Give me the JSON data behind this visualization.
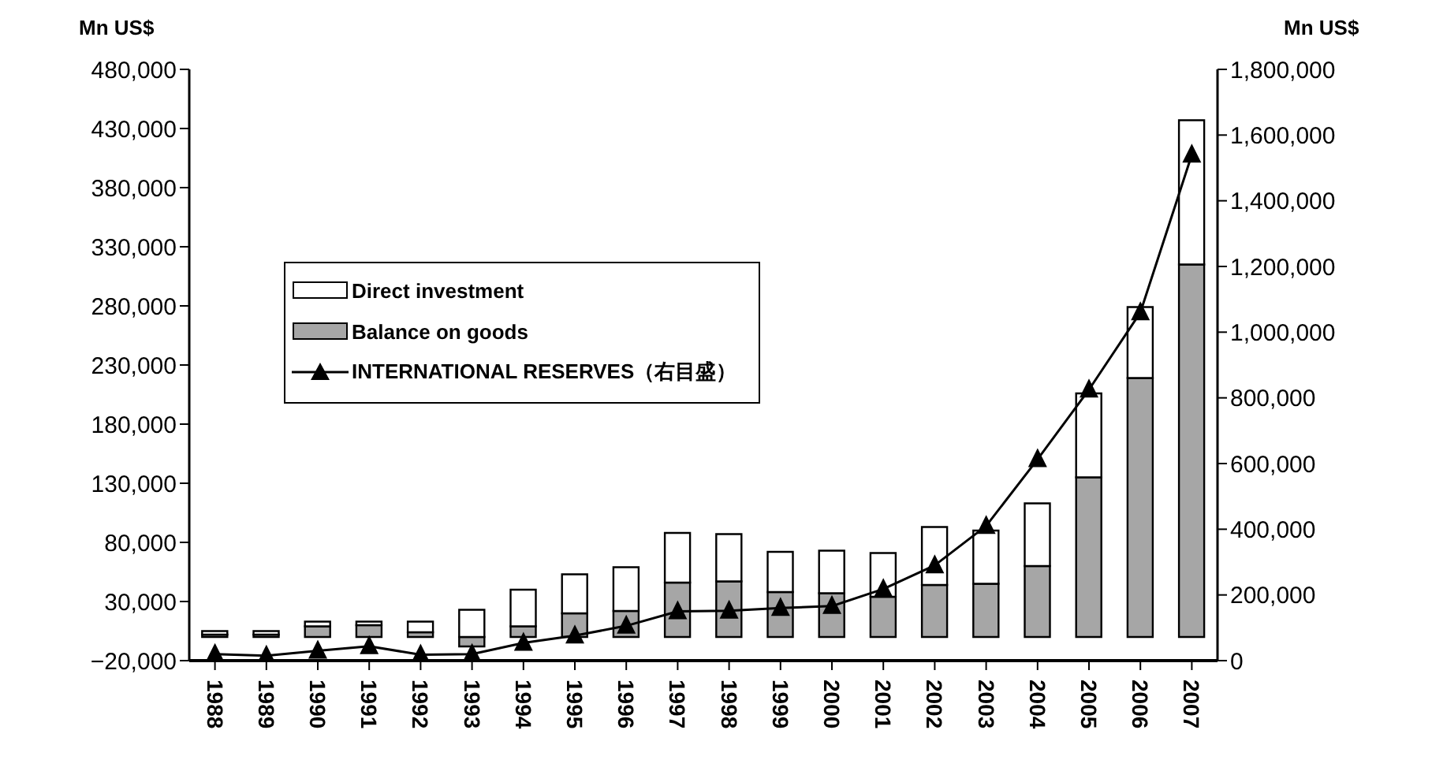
{
  "chart_data": {
    "type": "bar",
    "stacked": true,
    "annotations": [
      "Mn US$",
      "Mn US$"
    ],
    "categories": [
      "1988",
      "1989",
      "1990",
      "1991",
      "1992",
      "1993",
      "1994",
      "1995",
      "1996",
      "1997",
      "1998",
      "1999",
      "2000",
      "2001",
      "2002",
      "2003",
      "2004",
      "2005",
      "2006",
      "2007"
    ],
    "series": [
      {
        "name": "Balance on goods",
        "color": "#a6a6a6",
        "values": [
          2000,
          2000,
          9000,
          10000,
          4000,
          -8000,
          9000,
          20000,
          22000,
          46000,
          47000,
          38000,
          37000,
          34000,
          44000,
          45000,
          60000,
          135000,
          219000,
          315000
        ]
      },
      {
        "name": "Direct investment",
        "color": "#ffffff",
        "values": [
          3000,
          3000,
          4000,
          3000,
          9000,
          23000,
          31000,
          33000,
          37000,
          42000,
          40000,
          34000,
          36000,
          37000,
          49000,
          45000,
          53000,
          71000,
          60000,
          122000
        ]
      },
      {
        "name": "INTERNATIONAL RESERVES（右目盛）",
        "type": "line",
        "axis": "y2",
        "color": "#000000",
        "values": [
          20000,
          15000,
          30000,
          44000,
          18000,
          20000,
          54000,
          76000,
          106000,
          150000,
          152000,
          160000,
          166000,
          218000,
          290000,
          410000,
          613000,
          825000,
          1060000,
          1540000
        ]
      }
    ],
    "ylim": [
      -20000,
      480000
    ],
    "yticks": [
      {
        "value": -20000,
        "label": "−20,000"
      },
      {
        "value": 30000,
        "label": "30,000"
      },
      {
        "value": 80000,
        "label": "80,000"
      },
      {
        "value": 130000,
        "label": "130,000"
      },
      {
        "value": 180000,
        "label": "180,000"
      },
      {
        "value": 230000,
        "label": "230,000"
      },
      {
        "value": 280000,
        "label": "280,000"
      },
      {
        "value": 330000,
        "label": "330,000"
      },
      {
        "value": 380000,
        "label": "380,000"
      },
      {
        "value": 430000,
        "label": "430,000"
      },
      {
        "value": 480000,
        "label": "480,000"
      }
    ],
    "y2lim": [
      0,
      1800000
    ],
    "y2ticks": [
      0,
      {
        "value": 200000,
        "label": "200,000"
      },
      {
        "value": 400000,
        "label": "400,000"
      },
      {
        "value": 600000,
        "label": "600,000"
      },
      {
        "value": 800000,
        "label": "800,000"
      },
      {
        "value": 1000000,
        "label": "1,000,000"
      },
      {
        "value": 1200000,
        "label": "1,200,000"
      },
      {
        "value": 1400000,
        "label": "1,400,000"
      },
      {
        "value": 1600000,
        "label": "1,600,000"
      },
      {
        "value": 1800000,
        "label": "1,800,000"
      }
    ],
    "legend": "top left",
    "marker": "triangle",
    "line_style": "solid",
    "grid": false
  }
}
